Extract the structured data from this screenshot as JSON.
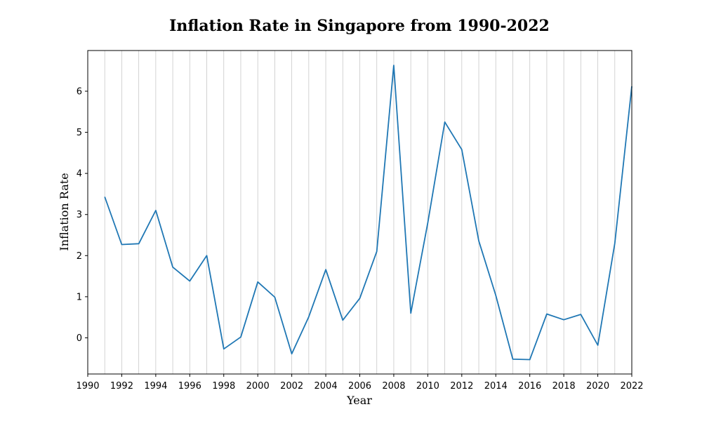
{
  "chart_data": {
    "type": "line",
    "title": "Inflation Rate in Singapore from 1990-2022",
    "xlabel": "Year",
    "ylabel": "Inflation Rate",
    "xlim": [
      1990,
      2022
    ],
    "ylim": [
      -0.88,
      6.99
    ],
    "x_ticks": [
      1990,
      1992,
      1994,
      1996,
      1998,
      2000,
      2002,
      2004,
      2006,
      2008,
      2010,
      2012,
      2014,
      2016,
      2018,
      2020,
      2022
    ],
    "y_ticks": [
      0,
      1,
      2,
      3,
      4,
      5,
      6
    ],
    "grid": "vertical, every year",
    "legend": "none",
    "line_color": "#1f77b4",
    "series": [
      {
        "x": [
          1991,
          1992,
          1993,
          1994,
          1995,
          1996,
          1997,
          1998,
          1999,
          2000,
          2001,
          2002,
          2003,
          2004,
          2005,
          2006,
          2007,
          2008,
          2009,
          2010,
          2011,
          2012,
          2013,
          2014,
          2015,
          2016,
          2017,
          2018,
          2019,
          2020,
          2021,
          2022
        ],
        "values": [
          3.43,
          2.27,
          2.29,
          3.1,
          1.72,
          1.38,
          2.0,
          -0.27,
          0.02,
          1.36,
          0.99,
          -0.39,
          0.51,
          1.66,
          0.43,
          0.96,
          2.1,
          6.63,
          0.6,
          2.8,
          5.25,
          4.58,
          2.36,
          1.03,
          -0.52,
          -0.53,
          0.58,
          0.44,
          0.57,
          -0.18,
          2.3,
          6.12
        ]
      }
    ]
  }
}
